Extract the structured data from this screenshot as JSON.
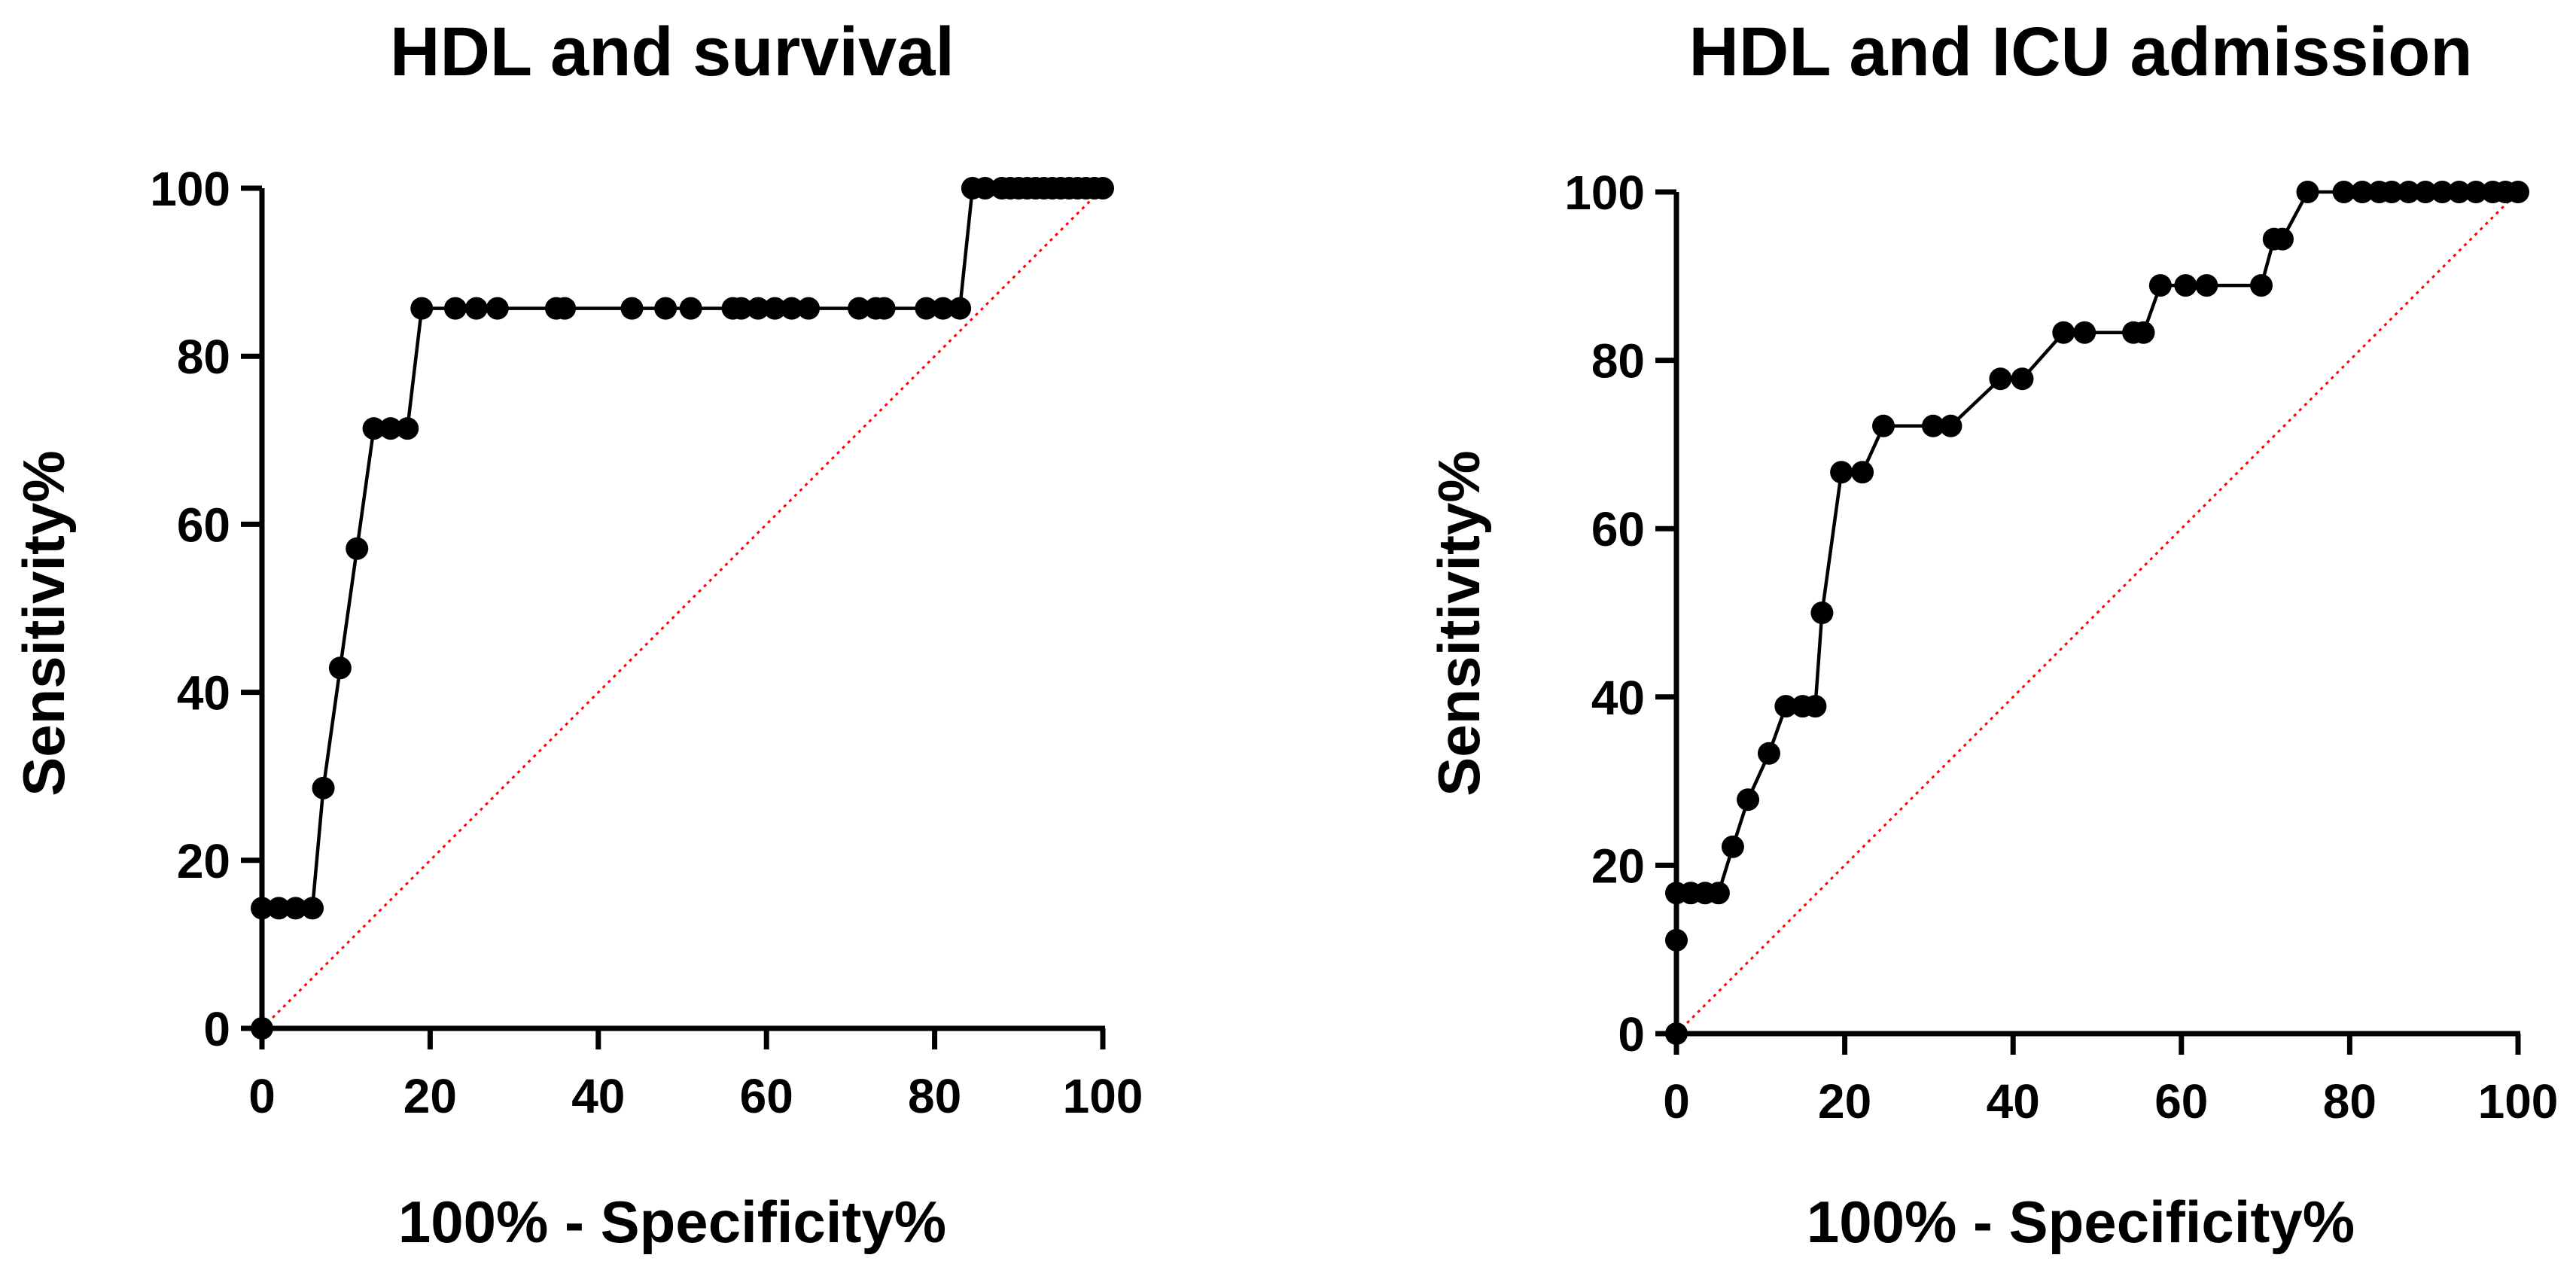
{
  "chart_data": [
    {
      "type": "line",
      "title": "HDL and survival",
      "xlabel": "100% - Specificity%",
      "ylabel": "Sensitivity%",
      "xlim": [
        0,
        100
      ],
      "ylim": [
        0,
        100
      ],
      "xticks": [
        "0",
        "20",
        "40",
        "60",
        "80",
        "100"
      ],
      "yticks": [
        "0",
        "20",
        "40",
        "60",
        "80",
        "100"
      ],
      "grid": false,
      "reference_line": {
        "name": "chance",
        "x": [
          0,
          100
        ],
        "y": [
          0,
          100
        ],
        "color": "#ff0000",
        "style": "dotted"
      },
      "series": [
        {
          "name": "ROC",
          "color": "#000000",
          "marker": "circle",
          "x": [
            0,
            0,
            2,
            4,
            6,
            7.3,
            9.3,
            11.3,
            13.3,
            15.3,
            17.3,
            19,
            23,
            25.5,
            28,
            35,
            36,
            44,
            48,
            51,
            56,
            57,
            59,
            61,
            63,
            65,
            71,
            73,
            74,
            79,
            81,
            83,
            84.5,
            86,
            88,
            89,
            90,
            91,
            92,
            93,
            94,
            95,
            96,
            97,
            98,
            99,
            100
          ],
          "y": [
            0,
            14.3,
            14.3,
            14.3,
            14.3,
            28.6,
            42.9,
            57.1,
            71.4,
            71.4,
            71.4,
            85.7,
            85.7,
            85.7,
            85.7,
            85.7,
            85.7,
            85.7,
            85.7,
            85.7,
            85.7,
            85.7,
            85.7,
            85.7,
            85.7,
            85.7,
            85.7,
            85.7,
            85.7,
            85.7,
            85.7,
            85.7,
            100,
            100,
            100,
            100,
            100,
            100,
            100,
            100,
            100,
            100,
            100,
            100,
            100,
            100,
            100
          ]
        }
      ]
    },
    {
      "type": "line",
      "title": "HDL and ICU admission",
      "xlabel": "100% - Specificity%",
      "ylabel": "Sensitivity%",
      "xlim": [
        0,
        100
      ],
      "ylim": [
        0,
        100
      ],
      "xticks": [
        "0",
        "20",
        "40",
        "60",
        "80",
        "100"
      ],
      "yticks": [
        "0",
        "20",
        "40",
        "60",
        "80",
        "100"
      ],
      "grid": false,
      "reference_line": {
        "name": "chance",
        "x": [
          0,
          100
        ],
        "y": [
          0,
          100
        ],
        "color": "#ff0000",
        "style": "dotted"
      },
      "series": [
        {
          "name": "ROC",
          "color": "#000000",
          "marker": "circle",
          "x": [
            0,
            0,
            0,
            1.7,
            3.4,
            5,
            6.7,
            8.5,
            11,
            13,
            15,
            16.5,
            17.3,
            19.6,
            22.1,
            24.6,
            30.5,
            32.6,
            38.5,
            41.1,
            46,
            48.5,
            54.3,
            55.5,
            57.5,
            60.5,
            63,
            69.5,
            71,
            72,
            75,
            79.3,
            81.5,
            83.5,
            85,
            87,
            89,
            91,
            93,
            95,
            97,
            98.5,
            100
          ],
          "y": [
            0,
            11.1,
            16.7,
            16.7,
            16.7,
            16.7,
            22.2,
            27.8,
            33.3,
            38.9,
            38.9,
            38.9,
            50,
            66.7,
            66.7,
            72.2,
            72.2,
            72.2,
            77.8,
            77.8,
            83.3,
            83.3,
            83.3,
            83.3,
            88.9,
            88.9,
            88.9,
            88.9,
            94.4,
            94.4,
            100,
            100,
            100,
            100,
            100,
            100,
            100,
            100,
            100,
            100,
            100,
            100,
            100
          ]
        }
      ]
    }
  ]
}
